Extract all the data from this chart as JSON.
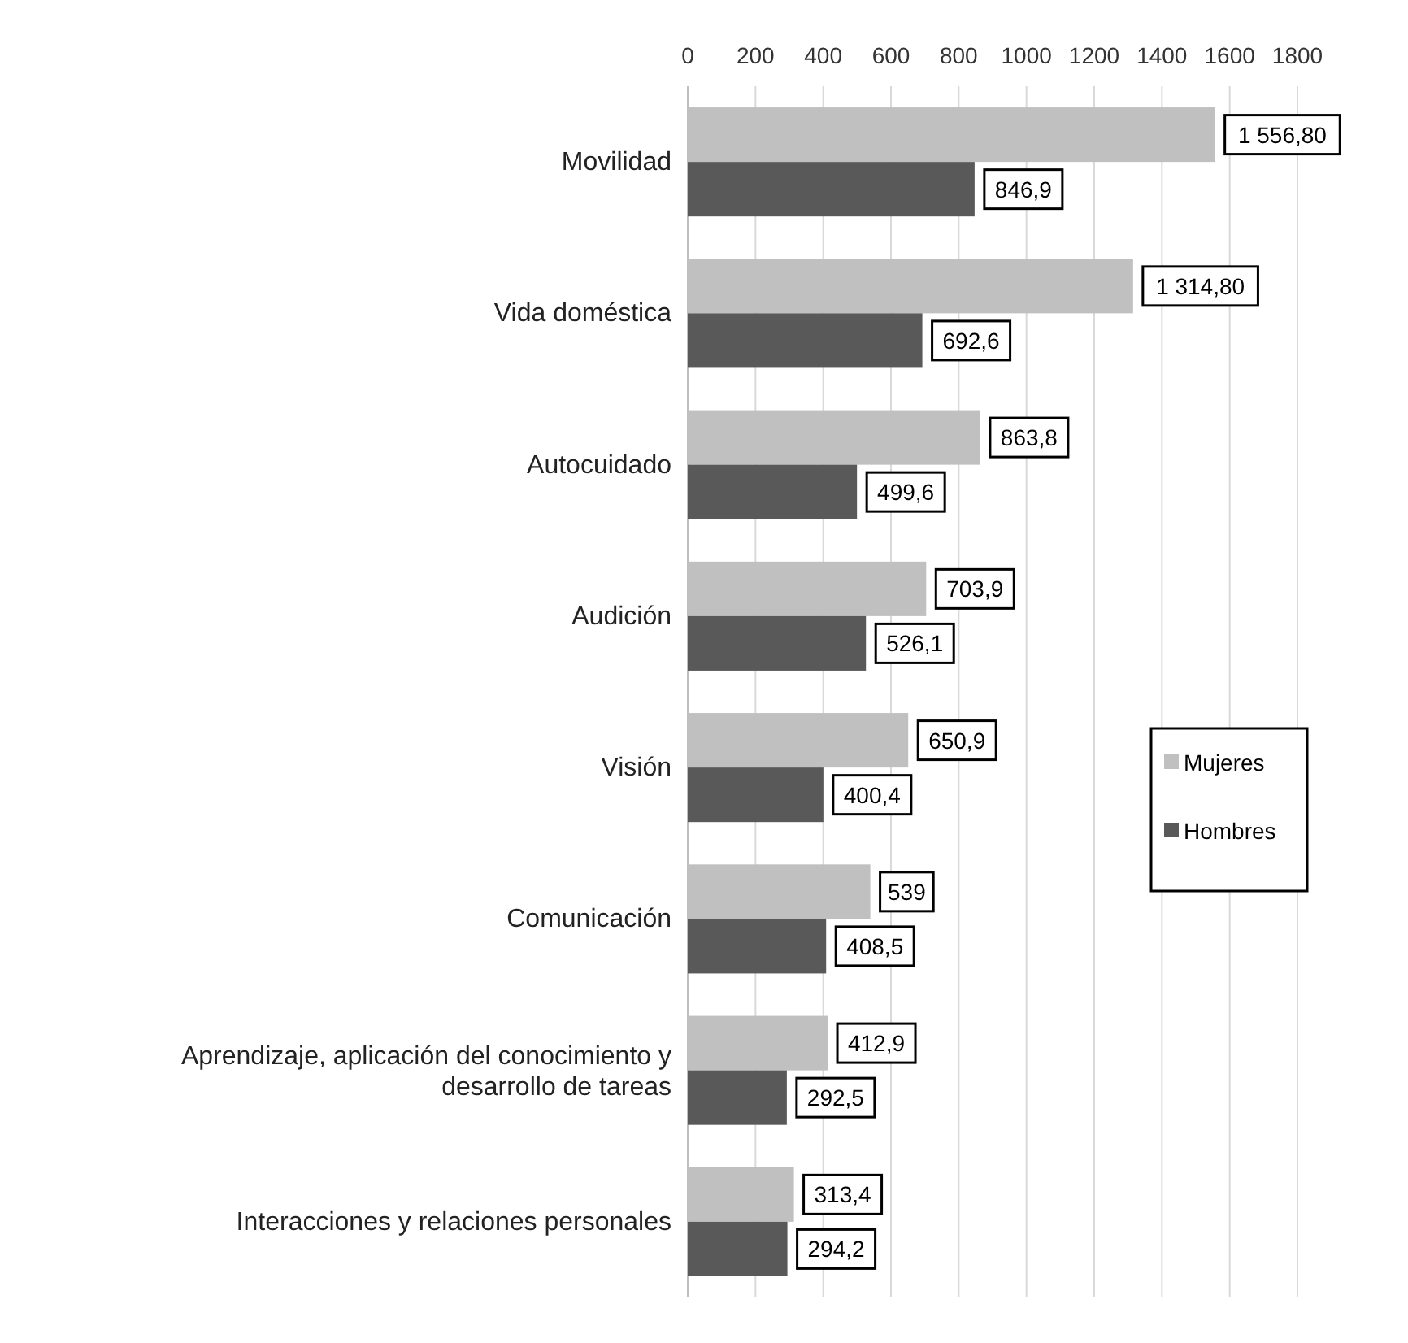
{
  "chart_data": {
    "type": "bar",
    "orientation": "horizontal",
    "categories": [
      "Movilidad",
      "Vida doméstica",
      "Autocuidado",
      "Audición",
      "Visión",
      "Comunicación",
      "Aprendizaje, aplicación del conocimiento y desarrollo de tareas",
      "Interacciones y relaciones personales"
    ],
    "series": [
      {
        "name": "Mujeres",
        "color": "#c0c0c0",
        "values": [
          1556.8,
          1314.8,
          863.8,
          703.9,
          650.9,
          539,
          412.9,
          313.4
        ],
        "value_labels": [
          "1 556,80",
          "1 314,80",
          "863,8",
          "703,9",
          "650,9",
          "539",
          "412,9",
          "313,4"
        ]
      },
      {
        "name": "Hombres",
        "color": "#595959",
        "values": [
          846.9,
          692.6,
          499.6,
          526.1,
          400.4,
          408.5,
          292.5,
          294.2
        ],
        "value_labels": [
          "846,9",
          "692,6",
          "499,6",
          "526,1",
          "400,4",
          "408,5",
          "292,5",
          "294,2"
        ]
      }
    ],
    "xlim": [
      0,
      1800
    ],
    "xticks": [
      0,
      200,
      400,
      600,
      800,
      1000,
      1200,
      1400,
      1600,
      1800
    ],
    "grid": "x",
    "legend": "right"
  }
}
